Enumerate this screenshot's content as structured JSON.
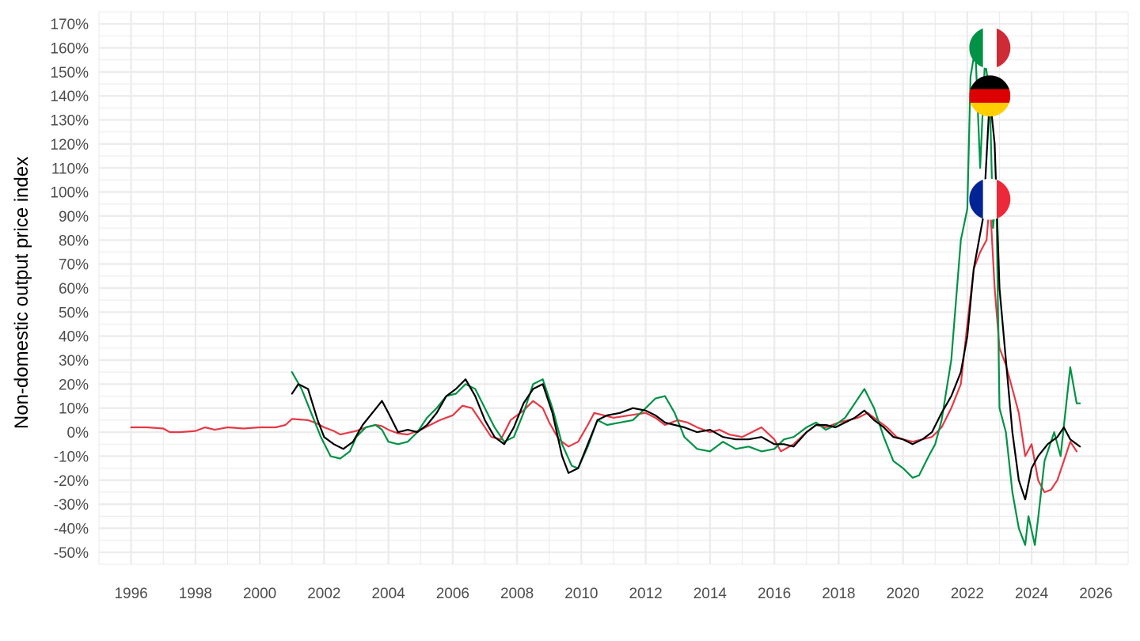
{
  "chart_data": {
    "type": "line",
    "title": "",
    "xlabel": "",
    "ylabel": "Non-domestic output price index",
    "xlim": [
      1995,
      2027
    ],
    "ylim": [
      -55,
      175
    ],
    "x_ticks": [
      1996,
      1998,
      2000,
      2002,
      2004,
      2006,
      2008,
      2010,
      2012,
      2014,
      2016,
      2018,
      2020,
      2022,
      2024,
      2026
    ],
    "x_tick_labels": [
      "1996",
      "1998",
      "2000",
      "2002",
      "2004",
      "2006",
      "2008",
      "2010",
      "2012",
      "2014",
      "2016",
      "2018",
      "2020",
      "2022",
      "2024",
      "2026"
    ],
    "y_ticks": [
      -50,
      -40,
      -30,
      -20,
      -10,
      0,
      10,
      20,
      30,
      40,
      50,
      60,
      70,
      80,
      90,
      100,
      110,
      120,
      130,
      140,
      150,
      160,
      170
    ],
    "y_tick_labels": [
      "-50%",
      "-40%",
      "-30%",
      "-20%",
      "-10%",
      "0%",
      "10%",
      "20%",
      "30%",
      "40%",
      "50%",
      "60%",
      "70%",
      "80%",
      "90%",
      "100%",
      "110%",
      "120%",
      "130%",
      "140%",
      "150%",
      "160%",
      "170%"
    ],
    "grid": true,
    "legend": "none",
    "series": [
      {
        "country": "France",
        "color": "#e63946",
        "flag": [
          "#002395",
          "#ffffff",
          "#ed2939"
        ],
        "flag_orientation": "vertical",
        "points": [
          [
            1996.0,
            2
          ],
          [
            1996.5,
            2
          ],
          [
            1997.0,
            1.5
          ],
          [
            1997.2,
            0
          ],
          [
            1997.5,
            0
          ],
          [
            1998.0,
            0.5
          ],
          [
            1998.3,
            2
          ],
          [
            1998.6,
            1
          ],
          [
            1999.0,
            2
          ],
          [
            1999.5,
            1.5
          ],
          [
            2000.0,
            2
          ],
          [
            2000.5,
            2
          ],
          [
            2000.8,
            3
          ],
          [
            2001.0,
            5.5
          ],
          [
            2001.5,
            5
          ],
          [
            2001.8,
            3.5
          ],
          [
            2002.0,
            2
          ],
          [
            2002.3,
            0.5
          ],
          [
            2002.5,
            -1
          ],
          [
            2003.0,
            0.5
          ],
          [
            2003.3,
            2
          ],
          [
            2003.6,
            3
          ],
          [
            2003.8,
            2.5
          ],
          [
            2004.0,
            1
          ],
          [
            2004.3,
            -0.5
          ],
          [
            2004.6,
            -1
          ],
          [
            2005.0,
            1
          ],
          [
            2005.3,
            3
          ],
          [
            2005.6,
            5
          ],
          [
            2006.0,
            7
          ],
          [
            2006.3,
            11
          ],
          [
            2006.6,
            10
          ],
          [
            2006.9,
            4
          ],
          [
            2007.2,
            -2
          ],
          [
            2007.5,
            -3
          ],
          [
            2007.8,
            5
          ],
          [
            2008.2,
            9
          ],
          [
            2008.5,
            13
          ],
          [
            2008.8,
            10
          ],
          [
            2009.0,
            4
          ],
          [
            2009.3,
            -3
          ],
          [
            2009.6,
            -6
          ],
          [
            2009.9,
            -4
          ],
          [
            2010.2,
            3
          ],
          [
            2010.4,
            8
          ],
          [
            2010.7,
            7
          ],
          [
            2011.0,
            6
          ],
          [
            2011.5,
            7
          ],
          [
            2012.0,
            8
          ],
          [
            2012.3,
            6
          ],
          [
            2012.6,
            3
          ],
          [
            2013.0,
            5
          ],
          [
            2013.3,
            4
          ],
          [
            2013.6,
            2
          ],
          [
            2014.0,
            0
          ],
          [
            2014.3,
            1
          ],
          [
            2014.6,
            -1
          ],
          [
            2015.0,
            -2
          ],
          [
            2015.3,
            0
          ],
          [
            2015.6,
            2
          ],
          [
            2016.0,
            -3
          ],
          [
            2016.2,
            -8
          ],
          [
            2016.6,
            -5
          ],
          [
            2017.0,
            0
          ],
          [
            2017.3,
            3
          ],
          [
            2017.6,
            2
          ],
          [
            2018.0,
            4
          ],
          [
            2018.3,
            5
          ],
          [
            2018.6,
            6
          ],
          [
            2018.9,
            8
          ],
          [
            2019.2,
            5
          ],
          [
            2019.5,
            2
          ],
          [
            2019.8,
            -2
          ],
          [
            2020.0,
            -3
          ],
          [
            2020.3,
            -4
          ],
          [
            2020.6,
            -3
          ],
          [
            2020.9,
            -2
          ],
          [
            2021.2,
            2
          ],
          [
            2021.5,
            10
          ],
          [
            2021.8,
            20
          ],
          [
            2022.0,
            45
          ],
          [
            2022.2,
            68
          ],
          [
            2022.4,
            75
          ],
          [
            2022.6,
            80
          ],
          [
            2022.7,
            97
          ],
          [
            2022.85,
            60
          ],
          [
            2023.0,
            35
          ],
          [
            2023.2,
            28
          ],
          [
            2023.4,
            18
          ],
          [
            2023.6,
            8
          ],
          [
            2023.8,
            -10
          ],
          [
            2024.0,
            -5
          ],
          [
            2024.2,
            -20
          ],
          [
            2024.4,
            -25
          ],
          [
            2024.6,
            -24
          ],
          [
            2024.8,
            -20
          ],
          [
            2025.0,
            -12
          ],
          [
            2025.2,
            -4
          ],
          [
            2025.4,
            -8
          ]
        ]
      },
      {
        "country": "Italy",
        "color": "#009246",
        "flag": [
          "#009246",
          "#ffffff",
          "#ce2b37"
        ],
        "flag_orientation": "vertical",
        "points": [
          [
            2001.0,
            25
          ],
          [
            2001.3,
            18
          ],
          [
            2001.6,
            8
          ],
          [
            2001.9,
            -2
          ],
          [
            2002.2,
            -10
          ],
          [
            2002.5,
            -11
          ],
          [
            2002.8,
            -8
          ],
          [
            2003.0,
            -2
          ],
          [
            2003.3,
            2
          ],
          [
            2003.6,
            3
          ],
          [
            2003.8,
            1
          ],
          [
            2004.0,
            -4
          ],
          [
            2004.3,
            -5
          ],
          [
            2004.6,
            -4
          ],
          [
            2004.9,
            0
          ],
          [
            2005.2,
            6
          ],
          [
            2005.5,
            10
          ],
          [
            2005.8,
            15
          ],
          [
            2006.1,
            16
          ],
          [
            2006.4,
            20
          ],
          [
            2006.7,
            18
          ],
          [
            2007.0,
            10
          ],
          [
            2007.3,
            2
          ],
          [
            2007.6,
            -4
          ],
          [
            2007.9,
            -2
          ],
          [
            2008.2,
            8
          ],
          [
            2008.5,
            20
          ],
          [
            2008.8,
            22
          ],
          [
            2009.1,
            10
          ],
          [
            2009.4,
            -5
          ],
          [
            2009.7,
            -14
          ],
          [
            2009.9,
            -15
          ],
          [
            2010.2,
            -6
          ],
          [
            2010.5,
            5
          ],
          [
            2010.8,
            3
          ],
          [
            2011.2,
            4
          ],
          [
            2011.6,
            5
          ],
          [
            2012.0,
            10
          ],
          [
            2012.3,
            14
          ],
          [
            2012.6,
            15
          ],
          [
            2012.9,
            8
          ],
          [
            2013.2,
            -2
          ],
          [
            2013.6,
            -7
          ],
          [
            2014.0,
            -8
          ],
          [
            2014.4,
            -4
          ],
          [
            2014.8,
            -7
          ],
          [
            2015.2,
            -6
          ],
          [
            2015.6,
            -8
          ],
          [
            2016.0,
            -7
          ],
          [
            2016.3,
            -3
          ],
          [
            2016.6,
            -2
          ],
          [
            2017.0,
            2
          ],
          [
            2017.3,
            4
          ],
          [
            2017.6,
            1
          ],
          [
            2017.9,
            3
          ],
          [
            2018.2,
            6
          ],
          [
            2018.5,
            12
          ],
          [
            2018.8,
            18
          ],
          [
            2019.1,
            10
          ],
          [
            2019.4,
            -2
          ],
          [
            2019.7,
            -12
          ],
          [
            2020.0,
            -15
          ],
          [
            2020.3,
            -19
          ],
          [
            2020.5,
            -18
          ],
          [
            2020.8,
            -10
          ],
          [
            2021.0,
            -5
          ],
          [
            2021.2,
            5
          ],
          [
            2021.5,
            30
          ],
          [
            2021.8,
            80
          ],
          [
            2022.0,
            93
          ],
          [
            2022.1,
            148
          ],
          [
            2022.25,
            160
          ],
          [
            2022.4,
            110
          ],
          [
            2022.55,
            155
          ],
          [
            2022.7,
            140
          ],
          [
            2022.8,
            85
          ],
          [
            2022.9,
            100
          ],
          [
            2023.0,
            10
          ],
          [
            2023.2,
            0
          ],
          [
            2023.4,
            -25
          ],
          [
            2023.6,
            -40
          ],
          [
            2023.8,
            -47
          ],
          [
            2023.9,
            -35
          ],
          [
            2024.1,
            -47
          ],
          [
            2024.2,
            -36
          ],
          [
            2024.4,
            -12
          ],
          [
            2024.7,
            0
          ],
          [
            2024.9,
            -10
          ],
          [
            2025.2,
            27
          ],
          [
            2025.4,
            12
          ],
          [
            2025.5,
            12
          ]
        ]
      },
      {
        "country": "Germany",
        "color": "#000000",
        "flag": [
          "#000000",
          "#dd0000",
          "#ffce00"
        ],
        "flag_orientation": "horizontal",
        "points": [
          [
            2001.0,
            16
          ],
          [
            2001.2,
            20
          ],
          [
            2001.5,
            18
          ],
          [
            2001.8,
            5
          ],
          [
            2002.0,
            -2
          ],
          [
            2002.3,
            -5
          ],
          [
            2002.6,
            -7
          ],
          [
            2002.9,
            -4
          ],
          [
            2003.2,
            3
          ],
          [
            2003.5,
            8
          ],
          [
            2003.8,
            13
          ],
          [
            2004.0,
            8
          ],
          [
            2004.3,
            0
          ],
          [
            2004.6,
            1
          ],
          [
            2004.9,
            0
          ],
          [
            2005.2,
            3
          ],
          [
            2005.5,
            8
          ],
          [
            2005.8,
            15
          ],
          [
            2006.1,
            18
          ],
          [
            2006.4,
            22
          ],
          [
            2006.7,
            15
          ],
          [
            2007.0,
            5
          ],
          [
            2007.3,
            -2
          ],
          [
            2007.6,
            -5
          ],
          [
            2007.9,
            2
          ],
          [
            2008.2,
            12
          ],
          [
            2008.5,
            18
          ],
          [
            2008.8,
            20
          ],
          [
            2009.1,
            8
          ],
          [
            2009.4,
            -10
          ],
          [
            2009.6,
            -17
          ],
          [
            2009.9,
            -15
          ],
          [
            2010.2,
            -5
          ],
          [
            2010.5,
            5
          ],
          [
            2010.8,
            7
          ],
          [
            2011.2,
            8
          ],
          [
            2011.6,
            10
          ],
          [
            2012.0,
            9
          ],
          [
            2012.3,
            7
          ],
          [
            2012.6,
            4
          ],
          [
            2012.9,
            3
          ],
          [
            2013.2,
            2
          ],
          [
            2013.6,
            0
          ],
          [
            2014.0,
            1
          ],
          [
            2014.4,
            -2
          ],
          [
            2014.8,
            -3
          ],
          [
            2015.2,
            -3
          ],
          [
            2015.6,
            -2
          ],
          [
            2016.0,
            -5
          ],
          [
            2016.3,
            -5
          ],
          [
            2016.6,
            -6
          ],
          [
            2017.0,
            0
          ],
          [
            2017.3,
            3
          ],
          [
            2017.6,
            3
          ],
          [
            2017.9,
            2
          ],
          [
            2018.2,
            4
          ],
          [
            2018.5,
            6
          ],
          [
            2018.8,
            9
          ],
          [
            2019.1,
            5
          ],
          [
            2019.4,
            2
          ],
          [
            2019.7,
            -2
          ],
          [
            2020.0,
            -3
          ],
          [
            2020.3,
            -5
          ],
          [
            2020.6,
            -3
          ],
          [
            2020.9,
            0
          ],
          [
            2021.2,
            8
          ],
          [
            2021.5,
            15
          ],
          [
            2021.8,
            25
          ],
          [
            2022.0,
            40
          ],
          [
            2022.2,
            68
          ],
          [
            2022.5,
            90
          ],
          [
            2022.7,
            140
          ],
          [
            2022.85,
            120
          ],
          [
            2023.0,
            60
          ],
          [
            2023.2,
            30
          ],
          [
            2023.4,
            0
          ],
          [
            2023.6,
            -20
          ],
          [
            2023.8,
            -28
          ],
          [
            2024.0,
            -15
          ],
          [
            2024.2,
            -10
          ],
          [
            2024.5,
            -5
          ],
          [
            2024.8,
            -2
          ],
          [
            2025.0,
            2
          ],
          [
            2025.2,
            -3
          ],
          [
            2025.5,
            -6
          ]
        ]
      }
    ]
  }
}
